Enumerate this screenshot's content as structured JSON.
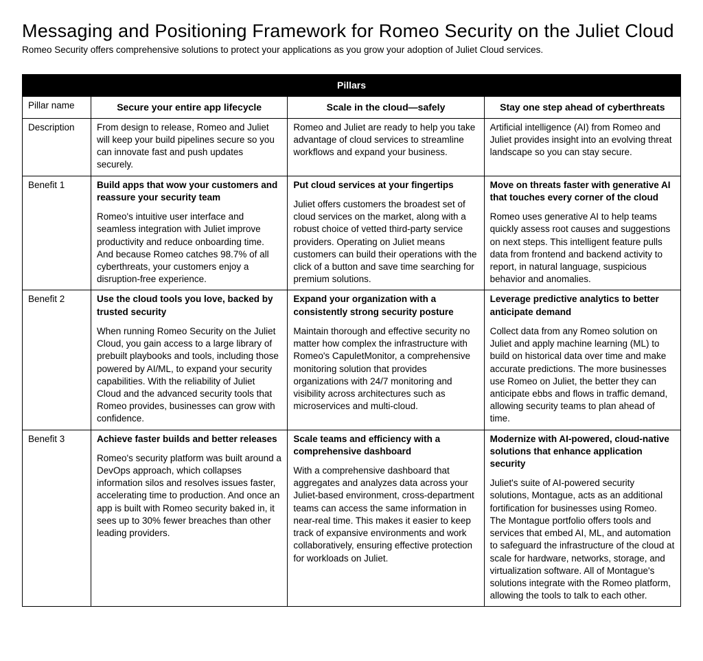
{
  "title": "Messaging and Positioning Framework for Romeo Security on the Juliet Cloud",
  "subtitle": "Romeo Security offers comprehensive solutions to protect your applications as you grow your adoption of Juliet Cloud services.",
  "table": {
    "header_label": "Pillars",
    "row_labels": {
      "name": "Pillar name",
      "description": "Description",
      "b1": "Benefit 1",
      "b2": "Benefit 2",
      "b3": "Benefit 3"
    },
    "pillars": [
      {
        "name": "Secure your entire app lifecycle",
        "description": "From design to release, Romeo and Juliet will keep your build pipelines secure so you can innovate fast and push updates securely.",
        "b1_head": "Build apps that wow your customers and reassure your security team",
        "b1_body": "Romeo's intuitive user interface and seamless integration with Juliet improve productivity and reduce onboarding time. And because Romeo catches 98.7% of all cyberthreats, your customers enjoy a disruption-free experience.",
        "b2_head": "Use the cloud tools you love, backed by trusted security",
        "b2_body": "When running Romeo Security on the Juliet Cloud, you gain access to a large library of prebuilt playbooks and tools, including those powered by AI/ML, to expand your security capabilities. With the reliability of Juliet Cloud and the advanced security tools that Romeo provides, businesses can grow with confidence.",
        "b3_head": "Achieve faster builds and better releases",
        "b3_body": "Romeo's security platform was built around a DevOps approach, which collapses information silos and resolves issues faster, accelerating time to production. And once an app is built with Romeo security baked in, it sees up to 30% fewer breaches than other leading providers."
      },
      {
        "name": "Scale in the cloud—safely",
        "description": "Romeo and Juliet are ready to help you take advantage of cloud services to streamline workflows and expand your business.",
        "b1_head": "Put cloud services at your fingertips",
        "b1_body": "Juliet offers customers the broadest set of cloud services on the market, along with a robust choice of vetted third-party service providers. Operating on Juliet means customers can build their operations with the click of a button and save time searching for premium solutions.",
        "b2_head": "Expand your organization with a consistently strong security posture",
        "b2_body": "Maintain thorough and effective security no matter how complex the infrastructure with Romeo's CapuletMonitor, a comprehensive monitoring solution that provides organizations with 24/7 monitoring and visibility across architectures such as microservices and multi-cloud.",
        "b3_head": "Scale teams and efficiency with a comprehensive dashboard",
        "b3_body": "With a comprehensive dashboard that aggregates and analyzes data across your Juliet-based environment, cross-department teams can access the same information in near-real time. This makes it easier to keep track of expansive environments and work collaboratively, ensuring effective protection for workloads on Juliet."
      },
      {
        "name": "Stay one step ahead of cyberthreats",
        "description": "Artificial intelligence (AI) from Romeo and Juliet provides insight into an evolving threat landscape so you can stay secure.",
        "b1_head": "Move on threats faster with generative AI that touches every corner of the cloud",
        "b1_body": "Romeo uses generative AI to help teams quickly assess root causes and suggestions on next steps. This intelligent feature pulls data from frontend and backend activity to report, in natural language, suspicious behavior and anomalies.",
        "b2_head": "Leverage predictive analytics to better anticipate demand",
        "b2_body": "Collect data from any Romeo solution on Juliet and apply machine learning (ML) to build on historical data over time and make accurate predictions. The more businesses use Romeo on Juliet, the better they can anticipate ebbs and flows in traffic demand, allowing security teams to plan ahead of time.",
        "b3_head": "Modernize with AI-powered, cloud-native solutions that enhance application security",
        "b3_body": "Juliet's suite of AI-powered security solutions, Montague, acts as an additional fortification for businesses using Romeo. The Montague portfolio offers tools and services that embed AI, ML, and automation to safeguard the infrastructure of the cloud at scale for hardware, networks, storage, and virtualization software. All of Montague's solutions integrate with the Romeo platform, allowing the tools to talk to each other."
      }
    ]
  }
}
